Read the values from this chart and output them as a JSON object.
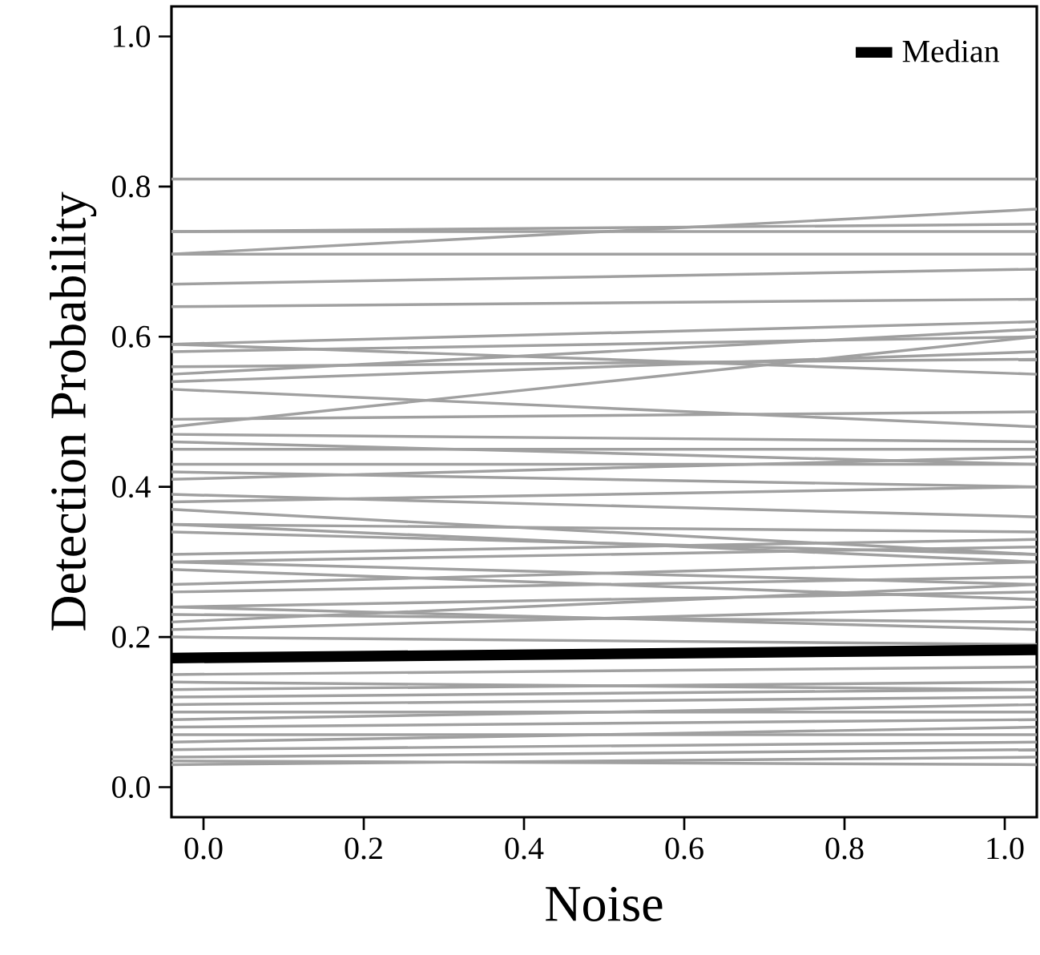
{
  "chart_data": {
    "type": "line",
    "xlabel": "Noise",
    "ylabel": "Detection Probability",
    "x": [
      -0.04,
      1.04
    ],
    "xlim": [
      -0.04,
      1.04
    ],
    "ylim": [
      -0.04,
      1.04
    ],
    "xticks": [
      {
        "value": 0,
        "label": "0.0"
      },
      0.2,
      0.4,
      0.6,
      0.8,
      {
        "value": 1,
        "label": "1.0"
      }
    ],
    "yticks": [
      {
        "value": 0,
        "label": "0.0"
      },
      0.2,
      0.4,
      0.6,
      0.8,
      {
        "value": 1,
        "label": "1.0"
      }
    ],
    "legend": "top right",
    "grid": false,
    "marker": "none",
    "line_style": "solid",
    "series": [
      {
        "color": "#a0a0a0",
        "values": [
          0.81,
          0.81
        ]
      },
      {
        "color": "#a0a0a0",
        "values": [
          0.74,
          0.74
        ]
      },
      {
        "color": "#a0a0a0",
        "values": [
          0.74,
          0.75
        ]
      },
      {
        "color": "#a0a0a0",
        "values": [
          0.71,
          0.77
        ]
      },
      {
        "color": "#a0a0a0",
        "values": [
          0.71,
          0.71
        ]
      },
      {
        "color": "#a0a0a0",
        "values": [
          0.67,
          0.69
        ]
      },
      {
        "color": "#a0a0a0",
        "values": [
          0.64,
          0.65
        ]
      },
      {
        "color": "#a0a0a0",
        "values": [
          0.59,
          0.62
        ]
      },
      {
        "color": "#a0a0a0",
        "values": [
          0.59,
          0.55
        ]
      },
      {
        "color": "#a0a0a0",
        "values": [
          0.58,
          0.6
        ]
      },
      {
        "color": "#a0a0a0",
        "values": [
          0.56,
          0.57
        ]
      },
      {
        "color": "#a0a0a0",
        "values": [
          0.55,
          0.61
        ]
      },
      {
        "color": "#a0a0a0",
        "values": [
          0.54,
          0.58
        ]
      },
      {
        "color": "#a0a0a0",
        "values": [
          0.53,
          0.48
        ]
      },
      {
        "color": "#a0a0a0",
        "values": [
          0.49,
          0.5
        ]
      },
      {
        "color": "#a0a0a0",
        "values": [
          0.48,
          0.6
        ]
      },
      {
        "color": "#a0a0a0",
        "values": [
          0.47,
          0.46
        ]
      },
      {
        "color": "#a0a0a0",
        "values": [
          0.46,
          0.43
        ]
      },
      {
        "color": "#a0a0a0",
        "values": [
          0.45,
          0.45
        ]
      },
      {
        "color": "#a0a0a0",
        "values": [
          0.43,
          0.43
        ]
      },
      {
        "color": "#a0a0a0",
        "values": [
          0.42,
          0.4
        ]
      },
      {
        "color": "#a0a0a0",
        "values": [
          0.41,
          0.44
        ]
      },
      {
        "color": "#a0a0a0",
        "values": [
          0.39,
          0.36
        ]
      },
      {
        "color": "#a0a0a0",
        "values": [
          0.38,
          0.4
        ]
      },
      {
        "color": "#a0a0a0",
        "values": [
          0.37,
          0.31
        ]
      },
      {
        "color": "#a0a0a0",
        "values": [
          0.35,
          0.34
        ]
      },
      {
        "color": "#a0a0a0",
        "values": [
          0.35,
          0.3
        ]
      },
      {
        "color": "#a0a0a0",
        "values": [
          0.34,
          0.31
        ]
      },
      {
        "color": "#a0a0a0",
        "values": [
          0.31,
          0.33
        ]
      },
      {
        "color": "#a0a0a0",
        "values": [
          0.3,
          0.27
        ]
      },
      {
        "color": "#a0a0a0",
        "values": [
          0.3,
          0.32
        ]
      },
      {
        "color": "#a0a0a0",
        "values": [
          0.29,
          0.25
        ]
      },
      {
        "color": "#a0a0a0",
        "values": [
          0.27,
          0.3
        ]
      },
      {
        "color": "#a0a0a0",
        "values": [
          0.26,
          0.28
        ]
      },
      {
        "color": "#a0a0a0",
        "values": [
          0.24,
          0.21
        ]
      },
      {
        "color": "#a0a0a0",
        "values": [
          0.24,
          0.26
        ]
      },
      {
        "color": "#a0a0a0",
        "values": [
          0.23,
          0.22
        ]
      },
      {
        "color": "#a0a0a0",
        "values": [
          0.22,
          0.27
        ]
      },
      {
        "color": "#a0a0a0",
        "values": [
          0.21,
          0.24
        ]
      },
      {
        "color": "#a0a0a0",
        "values": [
          0.2,
          0.19
        ]
      },
      {
        "color": "#a0a0a0",
        "values": [
          0.15,
          0.16
        ]
      },
      {
        "color": "#a0a0a0",
        "values": [
          0.14,
          0.13
        ]
      },
      {
        "color": "#a0a0a0",
        "values": [
          0.13,
          0.14
        ]
      },
      {
        "color": "#a0a0a0",
        "values": [
          0.12,
          0.13
        ]
      },
      {
        "color": "#a0a0a0",
        "values": [
          0.11,
          0.12
        ]
      },
      {
        "color": "#a0a0a0",
        "values": [
          0.1,
          0.1
        ]
      },
      {
        "color": "#a0a0a0",
        "values": [
          0.09,
          0.11
        ]
      },
      {
        "color": "#a0a0a0",
        "values": [
          0.08,
          0.09
        ]
      },
      {
        "color": "#a0a0a0",
        "values": [
          0.07,
          0.07
        ]
      },
      {
        "color": "#a0a0a0",
        "values": [
          0.06,
          0.08
        ]
      },
      {
        "color": "#a0a0a0",
        "values": [
          0.05,
          0.06
        ]
      },
      {
        "color": "#a0a0a0",
        "values": [
          0.04,
          0.05
        ]
      },
      {
        "color": "#a0a0a0",
        "values": [
          0.03,
          0.04
        ]
      },
      {
        "color": "#a0a0a0",
        "values": [
          0.035,
          0.03
        ]
      },
      {
        "name": "Median",
        "color": "#000000",
        "values": [
          0.172,
          0.183
        ]
      }
    ]
  }
}
